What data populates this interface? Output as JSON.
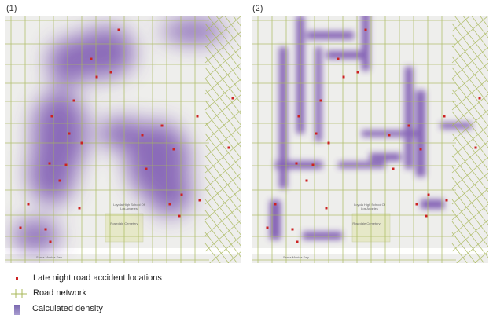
{
  "panels": [
    {
      "label": "(1)",
      "map_labels": {
        "cemetery": "Rosedale Cemetery",
        "school": "Loyola High School Of Los Angeles",
        "freeway": "Santa Monica Fwy"
      }
    },
    {
      "label": "(2)",
      "map_labels": {
        "cemetery": "Rosedale Cemetery",
        "school": "Loyola High School Of Los Angeles",
        "freeway": "Santa Monica Fwy"
      }
    }
  ],
  "legend": {
    "accidents": "Late night road accident locations",
    "roads": "Road network",
    "density": "Calculated density"
  },
  "colors": {
    "accident": "#cc2222",
    "road": "#a8b85a",
    "density": "#6a3fa8",
    "background": "#eeeeec"
  }
}
